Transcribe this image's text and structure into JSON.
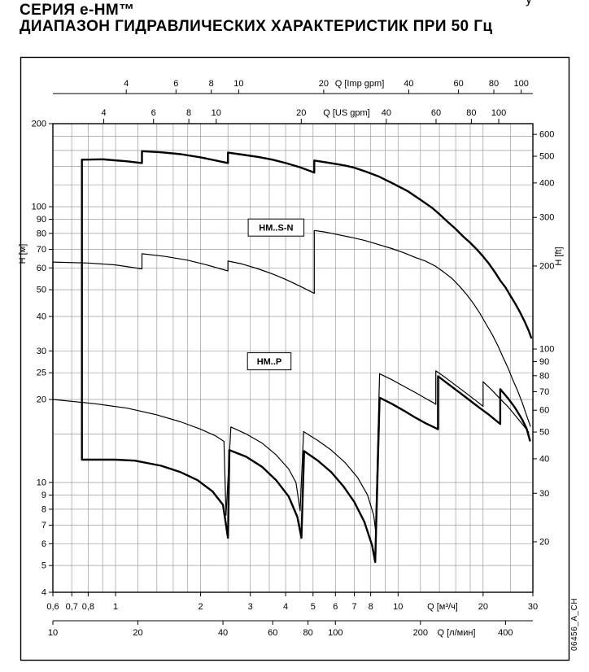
{
  "page": {
    "title_line1": "СЕРИЯ  e-HM™",
    "title_line2": "ДИАПАЗОН ГИДРАВЛИЧЕСКИХ ХАРАКТЕРИСТИК ПРИ 50 Гц",
    "corner_fragment": "у",
    "side_code": "06456_A_CH"
  },
  "chart_data": {
    "type": "line",
    "title": "СЕРИЯ e-HM™ — ДИАПАЗОН ГИДРАВЛИЧЕСКИХ ХАРАКТЕРИСТИК ПРИ 50 Гц",
    "log_x": true,
    "log_y": true,
    "x_range_m3h": [
      0.6,
      30
    ],
    "y_range_m": [
      4,
      200
    ],
    "axes": {
      "left": {
        "title": "H [м]",
        "ticks": [
          200,
          100,
          90,
          80,
          70,
          60,
          50,
          40,
          30,
          25,
          20,
          10,
          9,
          8,
          7,
          6,
          5,
          4
        ]
      },
      "right": {
        "title": "H [ft]",
        "ticks": [
          600,
          500,
          400,
          300,
          200,
          100,
          90,
          80,
          70,
          60,
          50,
          40,
          30,
          20
        ],
        "m_per_unit": 0.3048
      },
      "bottom_m3h": {
        "title": "Q [м³/ч]",
        "tick_labels": [
          "0,6",
          "0,7",
          "0,8",
          "1",
          "2",
          "3",
          "4",
          "5",
          "6",
          "7",
          "8",
          "10",
          "20",
          "30"
        ],
        "tick_values": [
          0.6,
          0.7,
          0.8,
          1,
          2,
          3,
          4,
          5,
          6,
          7,
          8,
          10,
          20,
          30
        ]
      },
      "bottom_lmin": {
        "title": "Q [л/мин]",
        "ticks": [
          10,
          20,
          40,
          60,
          80,
          100,
          200,
          400
        ],
        "m3h_per_unit": 0.06
      },
      "top_imp": {
        "title": "Q [Imp gpm]",
        "ticks": [
          4,
          6,
          8,
          10,
          20,
          40,
          60,
          80,
          100
        ],
        "m3h_per_unit": 0.27276
      },
      "top_us": {
        "title": "Q [US gpm]",
        "ticks": [
          4,
          6,
          8,
          10,
          20,
          40,
          60,
          80,
          100
        ],
        "m3h_per_unit": 0.22712
      }
    },
    "grid": {
      "x_values": [
        0.6,
        0.7,
        0.8,
        0.9,
        1,
        1.2,
        1.4,
        1.6,
        1.8,
        2,
        2.5,
        3,
        3.5,
        4,
        4.5,
        5,
        6,
        7,
        8,
        9,
        10,
        12,
        14,
        16,
        18,
        20,
        25,
        30
      ],
      "y_values": [
        4,
        5,
        6,
        7,
        8,
        9,
        10,
        15,
        20,
        25,
        30,
        40,
        50,
        60,
        70,
        80,
        90,
        100,
        120,
        140,
        160,
        180,
        200
      ]
    },
    "series": [
      {
        "name": "hm-s-n-upper-limit",
        "style": "thick",
        "points": [
          [
            0.76,
            148
          ],
          [
            0.9,
            148.5
          ],
          [
            1.1,
            146
          ],
          [
            1.24,
            144
          ],
          [
            1.24,
            159
          ],
          [
            1.45,
            157.5
          ],
          [
            1.7,
            155
          ],
          [
            2.0,
            151
          ],
          [
            2.3,
            146.5
          ],
          [
            2.5,
            144
          ],
          [
            2.5,
            157
          ],
          [
            2.8,
            154.5
          ],
          [
            3.2,
            151.5
          ],
          [
            3.6,
            148
          ],
          [
            4.0,
            144
          ],
          [
            4.5,
            139
          ],
          [
            5.05,
            133
          ],
          [
            5.05,
            147
          ],
          [
            5.5,
            145
          ],
          [
            6.0,
            143
          ],
          [
            6.5,
            141
          ],
          [
            7.0,
            138.5
          ],
          [
            7.7,
            134
          ],
          [
            8.5,
            129
          ],
          [
            9.5,
            122
          ],
          [
            10.8,
            114
          ],
          [
            12.0,
            106
          ],
          [
            13.2,
            99
          ],
          [
            14.0,
            94
          ],
          [
            15.0,
            88
          ],
          [
            16.0,
            83
          ],
          [
            17.0,
            78
          ],
          [
            18.0,
            74
          ],
          [
            19.0,
            70
          ],
          [
            20.0,
            66
          ],
          [
            21.0,
            62
          ],
          [
            22.0,
            58
          ],
          [
            23.0,
            54
          ],
          [
            24.0,
            51
          ],
          [
            25.0,
            47.5
          ],
          [
            26.0,
            44.5
          ],
          [
            27.0,
            41.5
          ],
          [
            28.0,
            38.5
          ],
          [
            29.0,
            35.5
          ],
          [
            29.6,
            33.5
          ]
        ]
      },
      {
        "name": "hm-s-n-lower-limit",
        "style": "thick",
        "points": [
          [
            0.76,
            148
          ],
          [
            0.76,
            12.1
          ],
          [
            1.0,
            12.1
          ],
          [
            1.17,
            12.0
          ],
          [
            1.45,
            11.5
          ],
          [
            1.7,
            10.9
          ],
          [
            1.95,
            10.2
          ],
          [
            2.2,
            9.3
          ],
          [
            2.4,
            8.3
          ],
          [
            2.5,
            6.3
          ],
          [
            2.53,
            13.1
          ],
          [
            2.9,
            12.4
          ],
          [
            3.3,
            11.4
          ],
          [
            3.7,
            10.2
          ],
          [
            4.1,
            8.9
          ],
          [
            4.4,
            7.5
          ],
          [
            4.55,
            6.3
          ],
          [
            4.65,
            13.0
          ],
          [
            5.2,
            12.0
          ],
          [
            5.8,
            10.9
          ],
          [
            6.4,
            9.7
          ],
          [
            7.0,
            8.5
          ],
          [
            7.6,
            7.2
          ],
          [
            8.1,
            5.9
          ],
          [
            8.3,
            5.15
          ],
          [
            8.6,
            20.3
          ],
          [
            9.5,
            19.3
          ],
          [
            10.5,
            18.2
          ],
          [
            11.5,
            17.2
          ],
          [
            12.5,
            16.4
          ],
          [
            13.5,
            15.8
          ],
          [
            13.85,
            15.6
          ],
          [
            13.85,
            24.3
          ],
          [
            15.0,
            22.8
          ],
          [
            16.5,
            21.2
          ],
          [
            18.0,
            19.8
          ],
          [
            19.5,
            18.6
          ],
          [
            21.0,
            17.6
          ],
          [
            22.5,
            16.6
          ],
          [
            23.0,
            16.3
          ],
          [
            23.0,
            21.8
          ],
          [
            24.5,
            20.2
          ],
          [
            26.0,
            18.6
          ],
          [
            27.5,
            16.9
          ],
          [
            28.5,
            15.7
          ],
          [
            29.3,
            14.2
          ]
        ]
      },
      {
        "name": "hm-p-upper-limit",
        "style": "thin",
        "points": [
          [
            0.6,
            63
          ],
          [
            0.8,
            62.5
          ],
          [
            1.0,
            61.5
          ],
          [
            1.24,
            59.5
          ],
          [
            1.24,
            67.5
          ],
          [
            1.5,
            66
          ],
          [
            1.8,
            64
          ],
          [
            2.1,
            61.5
          ],
          [
            2.5,
            58.5
          ],
          [
            2.5,
            63.5
          ],
          [
            2.8,
            62
          ],
          [
            3.2,
            59.5
          ],
          [
            3.6,
            57
          ],
          [
            4.0,
            54.5
          ],
          [
            4.5,
            51.5
          ],
          [
            5.05,
            48.5
          ],
          [
            5.05,
            82
          ],
          [
            5.5,
            81
          ],
          [
            6.0,
            79.5
          ],
          [
            6.8,
            77.5
          ],
          [
            7.6,
            75.5
          ],
          [
            8.5,
            73
          ],
          [
            9.5,
            70.5
          ],
          [
            10.5,
            68
          ],
          [
            11.5,
            65.5
          ],
          [
            12.5,
            63.5
          ],
          [
            13.5,
            61
          ],
          [
            14.5,
            58
          ],
          [
            15.5,
            55
          ],
          [
            16.5,
            51.5
          ],
          [
            17.5,
            48
          ],
          [
            18.5,
            44.5
          ],
          [
            19.5,
            41
          ],
          [
            20.5,
            37.5
          ],
          [
            21.5,
            34.5
          ],
          [
            22.5,
            31.5
          ],
          [
            23.5,
            28.5
          ],
          [
            24.5,
            26
          ],
          [
            25.5,
            23.5
          ],
          [
            26.5,
            21.5
          ],
          [
            27.5,
            19.5
          ],
          [
            28.5,
            17.5
          ],
          [
            29.4,
            16
          ]
        ]
      },
      {
        "name": "hm-p-lower-limit",
        "style": "thin",
        "points": [
          [
            0.6,
            63
          ],
          [
            0.6,
            20
          ],
          [
            0.85,
            19.3
          ],
          [
            1.1,
            18.6
          ],
          [
            1.4,
            17.6
          ],
          [
            1.7,
            16.6
          ],
          [
            2.0,
            15.6
          ],
          [
            2.25,
            14.8
          ],
          [
            2.42,
            14.1
          ],
          [
            2.46,
            7.6
          ],
          [
            2.56,
            15.9
          ],
          [
            2.9,
            15.0
          ],
          [
            3.3,
            13.9
          ],
          [
            3.7,
            12.6
          ],
          [
            4.1,
            11.2
          ],
          [
            4.35,
            10.0
          ],
          [
            4.5,
            7.9
          ],
          [
            4.63,
            15.3
          ],
          [
            5.2,
            14.2
          ],
          [
            5.8,
            13.1
          ],
          [
            6.5,
            11.8
          ],
          [
            7.2,
            10.4
          ],
          [
            7.8,
            9.0
          ],
          [
            8.2,
            7.6
          ],
          [
            8.32,
            6.7
          ],
          [
            8.6,
            24.8
          ],
          [
            9.5,
            23.6
          ],
          [
            10.5,
            22.3
          ],
          [
            11.5,
            21.2
          ],
          [
            12.5,
            20.2
          ],
          [
            13.3,
            19.5
          ],
          [
            13.6,
            19.2
          ],
          [
            13.6,
            25.4
          ],
          [
            14.8,
            23.9
          ],
          [
            16.0,
            22.5
          ],
          [
            17.5,
            21.0
          ],
          [
            19.0,
            19.7
          ],
          [
            20.0,
            18.9
          ],
          [
            20.0,
            23.2
          ],
          [
            21.5,
            21.6
          ],
          [
            23.0,
            20.1
          ],
          [
            24.5,
            18.8
          ],
          [
            26.0,
            17.5
          ],
          [
            27.5,
            16.3
          ],
          [
            29.0,
            15.2
          ]
        ]
      }
    ],
    "annotations": [
      {
        "text": "HM..S-N",
        "q": 3.7,
        "h": 84
      },
      {
        "text": "HM..P",
        "q": 3.5,
        "h": 27.5
      }
    ],
    "legend": "none",
    "grid_on": true
  }
}
